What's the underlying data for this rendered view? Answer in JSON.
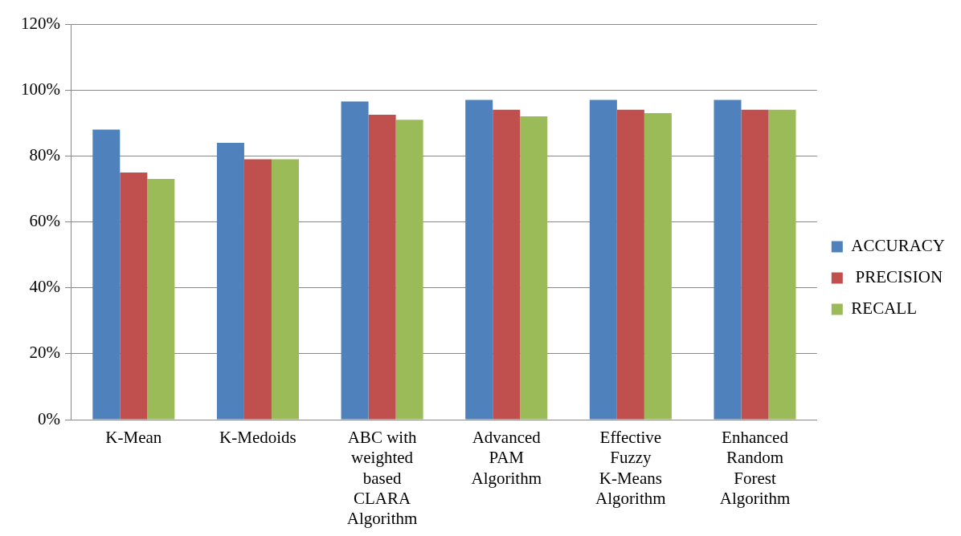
{
  "chart_data": {
    "type": "bar",
    "categories": [
      "K-Mean",
      "K-Medoids",
      "ABC with weighted based CLARA Algorithm",
      "Advanced PAM Algorithm",
      "Effective Fuzzy K-Means Algorithm",
      "Enhanced Random Forest Algorithm"
    ],
    "series": [
      {
        "name": "ACCURACY",
        "color": "#4f81bd",
        "values": [
          88,
          84,
          96.5,
          97,
          97,
          97
        ]
      },
      {
        "name": " PRECISION",
        "color": "#c0504d",
        "values": [
          75,
          79,
          92.5,
          94,
          94,
          94
        ]
      },
      {
        "name": "RECALL",
        "color": "#9bbb59",
        "values": [
          73,
          79,
          91,
          92,
          93,
          94
        ]
      }
    ],
    "ylim": [
      0,
      120
    ],
    "yticks": [
      {
        "value": 0,
        "label": "0%"
      },
      {
        "value": 20,
        "label": "20%"
      },
      {
        "value": 40,
        "label": "40%"
      },
      {
        "value": 60,
        "label": "60%"
      },
      {
        "value": 80,
        "label": "80%"
      },
      {
        "value": 100,
        "label": "100%"
      },
      {
        "value": 120,
        "label": "120%"
      }
    ],
    "grid": "y",
    "legend": "right"
  }
}
